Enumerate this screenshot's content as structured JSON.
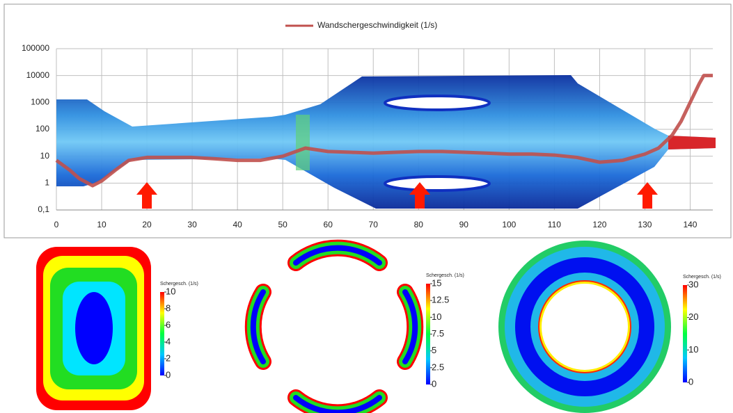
{
  "chart_data": {
    "type": "line",
    "yscale": "log",
    "grid": true,
    "legend": "top",
    "x": [
      0,
      3,
      5,
      8,
      10,
      13,
      16,
      20,
      25,
      30,
      35,
      40,
      45,
      50,
      55,
      60,
      65,
      70,
      75,
      80,
      85,
      90,
      95,
      100,
      105,
      110,
      115,
      120,
      125,
      130,
      133,
      136,
      138,
      140,
      142,
      143,
      145
    ],
    "series": [
      {
        "name": "Wandschergeschwindigkeit (1/s)",
        "color": "#c0504d",
        "values": [
          7,
          3,
          1.5,
          0.8,
          1.2,
          3,
          7,
          9,
          9,
          9,
          8,
          7,
          7,
          10,
          20,
          15,
          14,
          13,
          14,
          15,
          15,
          14,
          13,
          12,
          12,
          11,
          9,
          6,
          7,
          12,
          20,
          60,
          200,
          1000,
          5000,
          10000,
          10000
        ]
      }
    ],
    "xlim": [
      0,
      145
    ],
    "xticks": [
      0,
      10,
      20,
      30,
      40,
      50,
      60,
      70,
      80,
      90,
      100,
      110,
      120,
      130,
      140
    ],
    "ylim": [
      0.1,
      100000
    ],
    "yticks": [
      {
        "value": 0.1,
        "label": "0,1"
      },
      1,
      10,
      100,
      1000,
      10000,
      100000
    ]
  },
  "colorbars": [
    {
      "title": "Schergesch. (1/s)",
      "range": [
        0,
        10
      ],
      "ticks": [
        0,
        2,
        4,
        6,
        8,
        10
      ]
    },
    {
      "title": "Schergesch. (1/s)",
      "range": [
        0,
        15
      ],
      "ticks": [
        0,
        2.5,
        5,
        7.5,
        10,
        12.5,
        15
      ]
    },
    {
      "title": "Schergesch. (1/s)",
      "range": [
        0,
        30
      ],
      "ticks": [
        0,
        10,
        20,
        30
      ]
    }
  ]
}
